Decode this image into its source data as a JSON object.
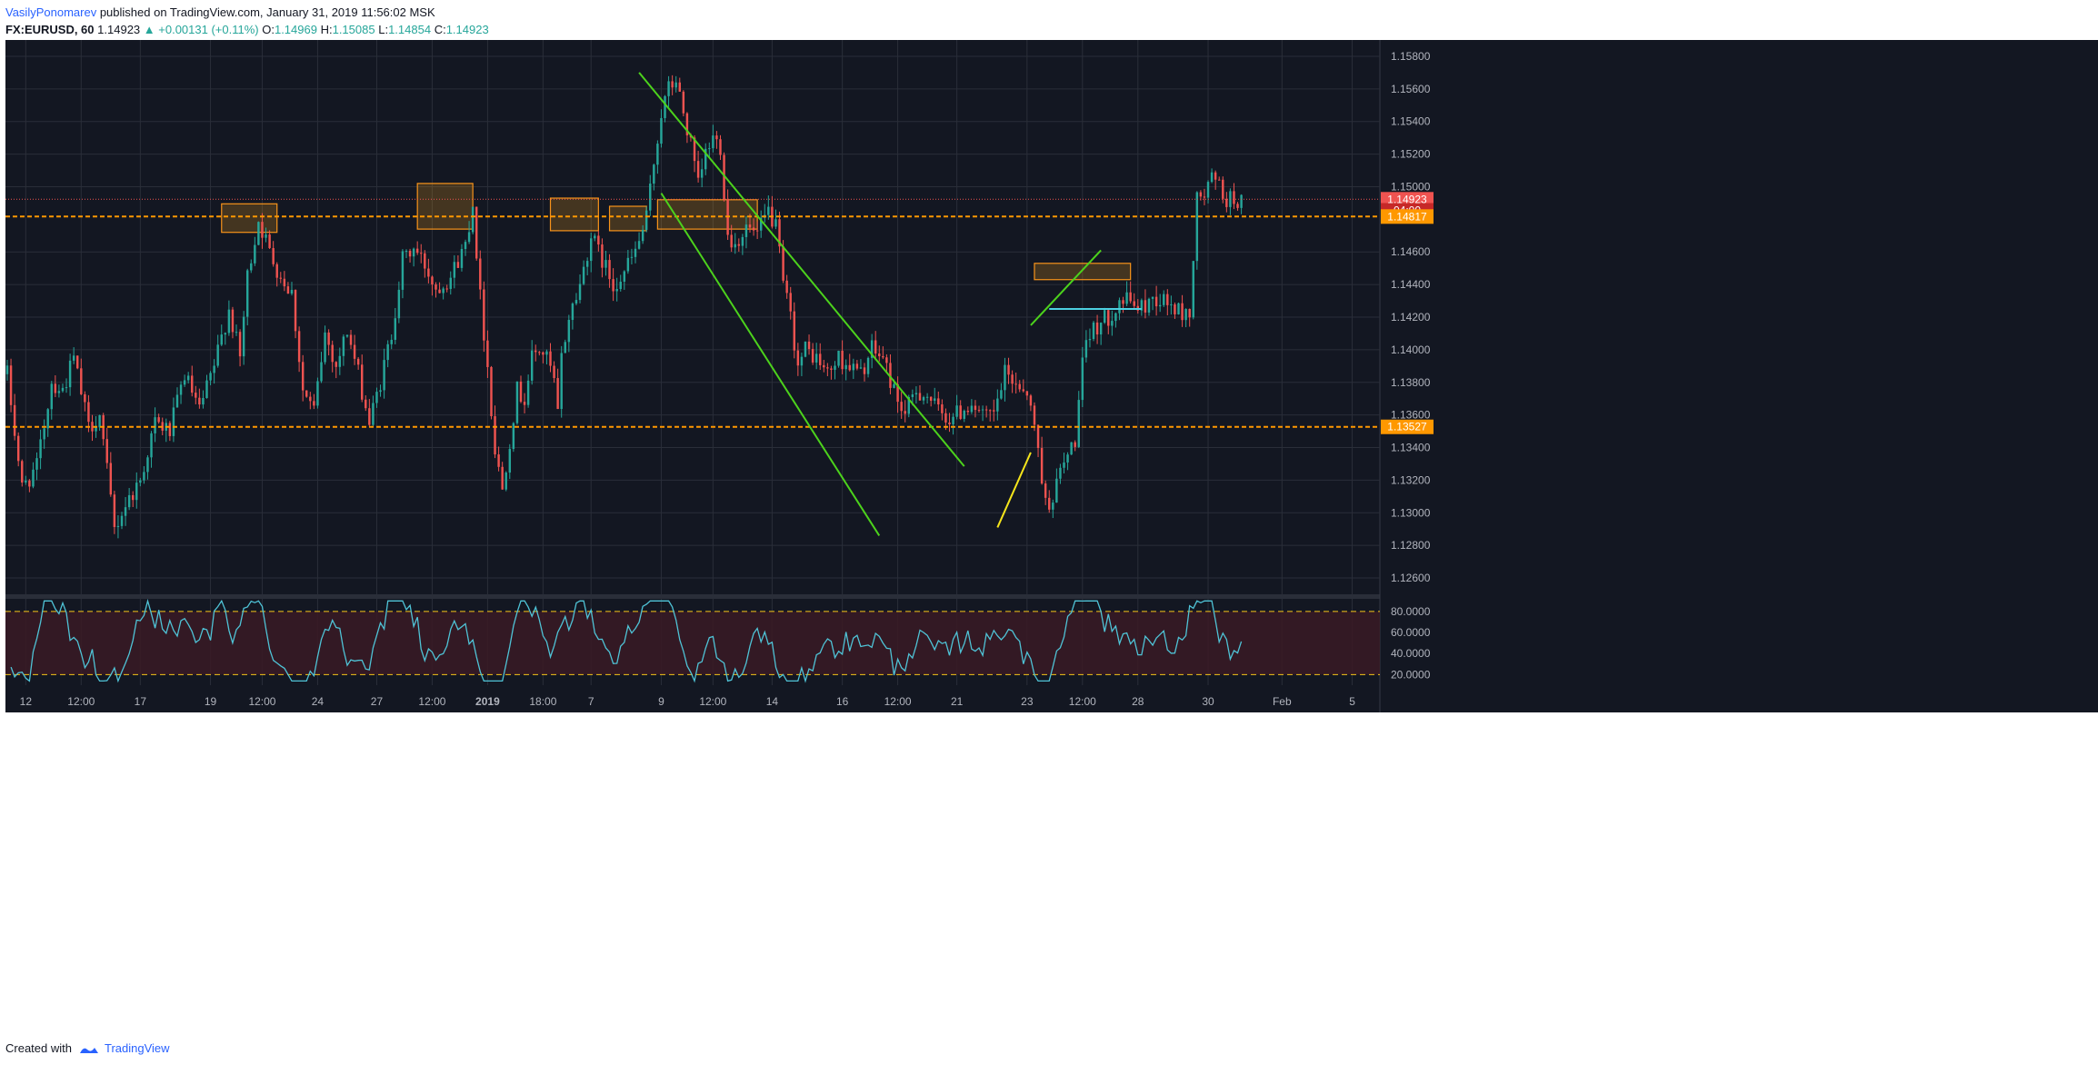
{
  "header": {
    "author": "VasilyPonomarev",
    "published_text": "published on TradingView.com, January 31, 2019 11:56:02 MSK",
    "symbol": "FX:EURUSD, 60",
    "last": "1.14923",
    "change": "▲ +0.00131 (+0.11%)",
    "open_label": "O:",
    "open": "1.14969",
    "high_label": "H:",
    "high": "1.15085",
    "low_label": "L:",
    "low": "1.14854",
    "close_label": "C:",
    "close": "1.14923"
  },
  "footer": {
    "created_with": "Created with",
    "brand": "TradingView"
  },
  "colors": {
    "background": "#131722",
    "grid": "#2a2e39",
    "bull": "#26a69a",
    "bear": "#ef5350",
    "trendline": "#4cd21c",
    "yellow_line": "#f5e51b",
    "zone_fill": "#f7a21b",
    "zone_border": "#f7931a",
    "support_line": "#ff9800",
    "cyan_line": "#4dd0e1",
    "rsi_line": "#4fc3d6",
    "rsi_band": "#3a1a24",
    "last_price_tag": "#ef5350",
    "level_tag": "#ff9800"
  },
  "chart_data": {
    "type": "candlestick",
    "symbol": "EURUSD",
    "timeframe": "60",
    "price_axis": {
      "ylim": [
        1.125,
        1.159
      ],
      "ticks": [
        "1.15800",
        "1.15600",
        "1.15400",
        "1.15200",
        "1.15000",
        "1.14600",
        "1.14400",
        "1.14200",
        "1.14000",
        "1.13800",
        "1.13600",
        "1.13400",
        "1.13200",
        "1.13000",
        "1.12800",
        "1.12600"
      ],
      "tags": [
        {
          "label": "1.14923",
          "value": 1.14923,
          "role": "last"
        },
        {
          "label": "04:00",
          "value": 1.14855,
          "role": "countdown"
        },
        {
          "label": "1.14817",
          "value": 1.14817,
          "role": "level"
        },
        {
          "label": "1.13527",
          "value": 1.13527,
          "role": "level"
        }
      ]
    },
    "time_axis": {
      "labels": [
        "12",
        "12:00",
        "17",
        "19",
        "12:00",
        "24",
        "27",
        "12:00",
        "2019",
        "18:00",
        "7",
        "9",
        "12:00",
        "14",
        "16",
        "12:00",
        "21",
        "23",
        "12:00",
        "28",
        "30",
        "Feb",
        "5"
      ],
      "label_index": [
        5,
        20,
        36,
        55,
        69,
        84,
        100,
        115,
        130,
        145,
        158,
        177,
        191,
        207,
        226,
        241,
        257,
        276,
        291,
        306,
        325,
        345,
        364
      ]
    },
    "candle_count": 335,
    "anchors": [
      [
        0,
        1.1385
      ],
      [
        4,
        1.1315
      ],
      [
        8,
        1.1328
      ],
      [
        12,
        1.138
      ],
      [
        15,
        1.1375
      ],
      [
        18,
        1.1395
      ],
      [
        22,
        1.1352
      ],
      [
        25,
        1.136
      ],
      [
        29,
        1.129
      ],
      [
        32,
        1.1305
      ],
      [
        36,
        1.132
      ],
      [
        40,
        1.1355
      ],
      [
        44,
        1.135
      ],
      [
        48,
        1.1385
      ],
      [
        52,
        1.1362
      ],
      [
        56,
        1.139
      ],
      [
        60,
        1.1425
      ],
      [
        63,
        1.1395
      ],
      [
        65,
        1.1445
      ],
      [
        68,
        1.148
      ],
      [
        71,
        1.146
      ],
      [
        74,
        1.1445
      ],
      [
        77,
        1.1435
      ],
      [
        80,
        1.1375
      ],
      [
        83,
        1.1362
      ],
      [
        86,
        1.141
      ],
      [
        89,
        1.139
      ],
      [
        92,
        1.1412
      ],
      [
        95,
        1.1385
      ],
      [
        98,
        1.1355
      ],
      [
        101,
        1.138
      ],
      [
        104,
        1.141
      ],
      [
        107,
        1.1455
      ],
      [
        110,
        1.1462
      ],
      [
        113,
        1.1452
      ],
      [
        116,
        1.1438
      ],
      [
        120,
        1.1445
      ],
      [
        124,
        1.1465
      ],
      [
        126,
        1.149
      ],
      [
        128,
        1.1432
      ],
      [
        130,
        1.139
      ],
      [
        132,
        1.1338
      ],
      [
        134,
        1.1315
      ],
      [
        136,
        1.1345
      ],
      [
        138,
        1.1375
      ],
      [
        140,
        1.137
      ],
      [
        142,
        1.1395
      ],
      [
        144,
        1.14
      ],
      [
        146,
        1.1395
      ],
      [
        148,
        1.138
      ],
      [
        149,
        1.136
      ],
      [
        150,
        1.1395
      ],
      [
        152,
        1.142
      ],
      [
        155,
        1.144
      ],
      [
        158,
        1.147
      ],
      [
        161,
        1.1455
      ],
      [
        164,
        1.144
      ],
      [
        167,
        1.1448
      ],
      [
        170,
        1.146
      ],
      [
        173,
        1.148
      ],
      [
        175,
        1.1515
      ],
      [
        177,
        1.1545
      ],
      [
        179,
        1.156
      ],
      [
        181,
        1.1565
      ],
      [
        183,
        1.1545
      ],
      [
        185,
        1.1525
      ],
      [
        187,
        1.15
      ],
      [
        189,
        1.152
      ],
      [
        191,
        1.153
      ],
      [
        193,
        1.1525
      ],
      [
        195,
        1.147
      ],
      [
        197,
        1.1465
      ],
      [
        200,
        1.1475
      ],
      [
        203,
        1.147
      ],
      [
        206,
        1.1485
      ],
      [
        208,
        1.1475
      ],
      [
        210,
        1.144
      ],
      [
        212,
        1.142
      ],
      [
        214,
        1.139
      ],
      [
        216,
        1.14
      ],
      [
        219,
        1.1395
      ],
      [
        222,
        1.1385
      ],
      [
        225,
        1.1395
      ],
      [
        228,
        1.139
      ],
      [
        231,
        1.1385
      ],
      [
        234,
        1.14
      ],
      [
        237,
        1.1395
      ],
      [
        240,
        1.1375
      ],
      [
        243,
        1.136
      ],
      [
        246,
        1.1375
      ],
      [
        249,
        1.1372
      ],
      [
        252,
        1.1362
      ],
      [
        255,
        1.1358
      ],
      [
        258,
        1.1362
      ],
      [
        261,
        1.1368
      ],
      [
        264,
        1.1358
      ],
      [
        267,
        1.136
      ],
      [
        270,
        1.1385
      ],
      [
        273,
        1.138
      ],
      [
        276,
        1.1375
      ],
      [
        279,
        1.134
      ],
      [
        281,
        1.1305
      ],
      [
        283,
        1.131
      ],
      [
        285,
        1.1325
      ],
      [
        287,
        1.1335
      ],
      [
        289,
        1.1345
      ],
      [
        291,
        1.139
      ],
      [
        293,
        1.141
      ],
      [
        295,
        1.1415
      ],
      [
        298,
        1.142
      ],
      [
        301,
        1.143
      ],
      [
        304,
        1.143
      ],
      [
        307,
        1.1425
      ],
      [
        310,
        1.1432
      ],
      [
        313,
        1.143
      ],
      [
        316,
        1.1425
      ],
      [
        318,
        1.1422
      ],
      [
        320,
        1.1422
      ],
      [
        322,
        1.1492
      ],
      [
        324,
        1.1495
      ],
      [
        326,
        1.1505
      ],
      [
        328,
        1.15
      ],
      [
        330,
        1.1492
      ]
    ],
    "zones": [
      {
        "from_index": 58,
        "to_index": 73,
        "low": 1.1472,
        "high": 1.14895
      },
      {
        "from_index": 111,
        "to_index": 126,
        "low": 1.1474,
        "high": 1.1502
      },
      {
        "from_index": 147,
        "to_index": 160,
        "low": 1.1473,
        "high": 1.1493
      },
      {
        "from_index": 163,
        "to_index": 173,
        "low": 1.1473,
        "high": 1.1488
      },
      {
        "from_index": 176,
        "to_index": 203,
        "low": 1.1474,
        "high": 1.1492
      },
      {
        "from_index": 278,
        "to_index": 304,
        "low": 1.1443,
        "high": 1.1453
      }
    ],
    "trendlines": [
      {
        "color": "trendline",
        "from": [
          171,
          1.157
        ],
        "to": [
          259,
          1.13285
        ]
      },
      {
        "color": "trendline",
        "from": [
          177,
          1.1496
        ],
        "to": [
          236,
          1.1286
        ]
      },
      {
        "color": "yellow_line",
        "from": [
          268,
          1.1291
        ],
        "to": [
          277,
          1.1337
        ]
      },
      {
        "color": "trendline",
        "from": [
          277,
          1.1415
        ],
        "to": [
          296,
          1.1461
        ]
      },
      {
        "color": "cyan_line",
        "from": [
          282,
          1.1425
        ],
        "to": [
          307,
          1.1425
        ]
      }
    ],
    "levels": [
      {
        "value": 1.14817,
        "style": "dashed",
        "color": "support_line"
      },
      {
        "value": 1.13527,
        "style": "dashed",
        "color": "support_line"
      },
      {
        "value": 1.14923,
        "style": "dotted",
        "color": "last_price_tag"
      }
    ],
    "rsi": {
      "ylim": [
        10,
        92
      ],
      "ticks": [
        "80.0000",
        "60.0000",
        "40.0000",
        "20.0000"
      ],
      "band": [
        20,
        80
      ]
    }
  }
}
